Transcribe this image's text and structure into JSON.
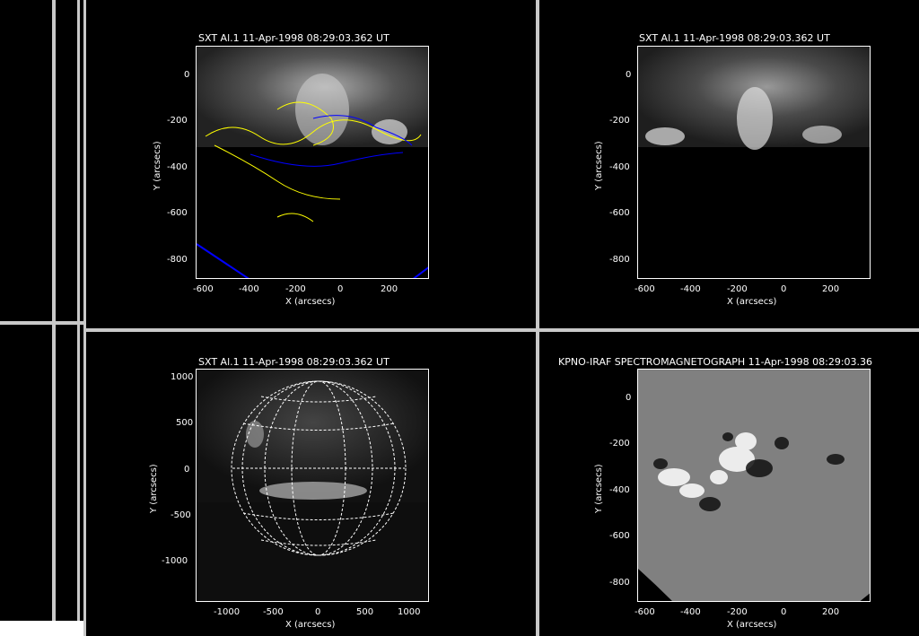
{
  "panels": {
    "tl": {
      "title": "SXT Al.1 11-Apr-1998 08:29:03.362 UT",
      "xlabel": "X (arcsecs)",
      "ylabel": "Y (arcsecs)",
      "xticks": [
        "-600",
        "-400",
        "-200",
        "0",
        "200"
      ],
      "yticks": [
        "0",
        "-200",
        "-400",
        "-600",
        "-800"
      ]
    },
    "tr": {
      "title": "SXT Al.1 11-Apr-1998 08:29:03.362 UT",
      "xlabel": "X (arcsecs)",
      "ylabel": "Y (arcsecs)",
      "xticks": [
        "-600",
        "-400",
        "-200",
        "0",
        "200"
      ],
      "yticks": [
        "0",
        "-200",
        "-400",
        "-600",
        "-800"
      ]
    },
    "bl": {
      "title": "SXT Al.1 11-Apr-1998 08:29:03.362 UT",
      "xlabel": "X (arcsecs)",
      "ylabel": "Y (arcsecs)",
      "xticks": [
        "-1000",
        "-500",
        "0",
        "500",
        "1000"
      ],
      "yticks": [
        "1000",
        "500",
        "0",
        "-500",
        "-1000"
      ]
    },
    "br": {
      "title": "KPNO-IRAF SPECTROMAGNETOGRAPH 11-Apr-1998 08:29:03.36",
      "xlabel": "X (arcsecs)",
      "ylabel": "Y (arcsecs)",
      "xticks": [
        "-600",
        "-400",
        "-200",
        "0",
        "200"
      ],
      "yticks": [
        "0",
        "-200",
        "-400",
        "-600",
        "-800"
      ]
    }
  },
  "colors": {
    "background": "#000000",
    "divider": "#c8c8c8",
    "contour_pos": "#ffff00",
    "contour_neg": "#0000ff",
    "magnetogram_bg": "#808080"
  }
}
